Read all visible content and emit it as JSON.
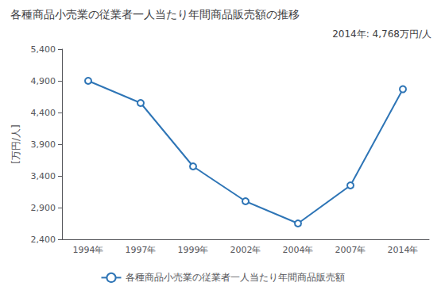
{
  "chart_data": {
    "type": "line",
    "title": "各種商品小売業の従業者一人当たり年間商品販売額の推移",
    "y_label": "[万円/人]",
    "annotation": "2014年: 4,768万円/人",
    "categories": [
      "1994年",
      "1997年",
      "1999年",
      "2002年",
      "2004年",
      "2007年",
      "2014年"
    ],
    "series": [
      {
        "name": "各種商品小売業の従業者一人当たり年間商品販売額",
        "color": "#2E75B6",
        "values": [
          4900,
          4550,
          3550,
          3000,
          2650,
          3250,
          4768
        ]
      }
    ],
    "ylim": [
      2400,
      5400
    ],
    "yticks": [
      {
        "value": 2400,
        "label": "2,400"
      },
      {
        "value": 2900,
        "label": "2,900"
      },
      {
        "value": 3400,
        "label": "3,400"
      },
      {
        "value": 3900,
        "label": "3,900"
      },
      {
        "value": 4400,
        "label": "4,400"
      },
      {
        "value": 4900,
        "label": "4,900"
      },
      {
        "value": 5400,
        "label": "5,400"
      }
    ],
    "marker": "circle",
    "grid": false,
    "legend": "bottom"
  }
}
